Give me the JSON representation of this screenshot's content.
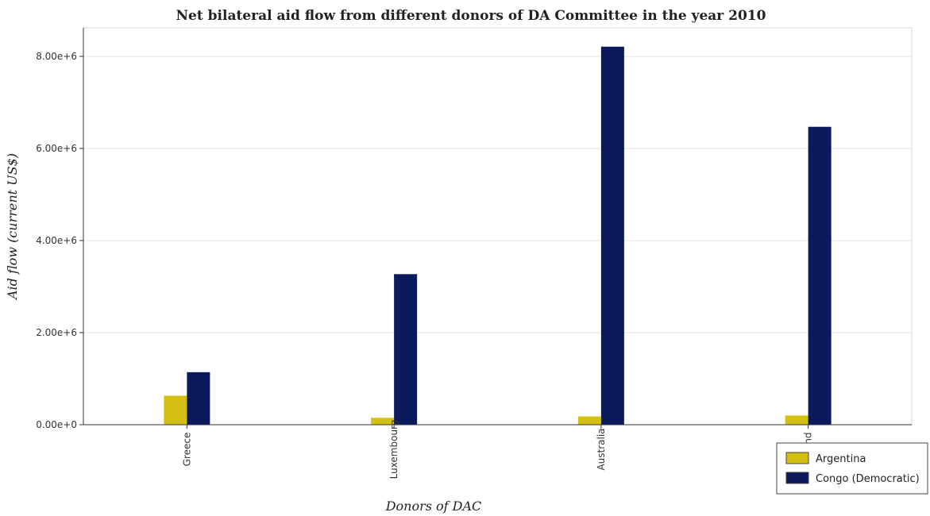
{
  "chart_data": {
    "type": "bar",
    "title": "Net bilateral aid flow from different donors of DA Committee in the year 2010",
    "xlabel": "Donors of DAC",
    "ylabel": "Aid flow (current US$)",
    "categories": [
      "Greece",
      "Luxembourg",
      "Australia",
      "Finland"
    ],
    "series": [
      {
        "name": "Argentina",
        "color": "#d4c013",
        "values": [
          630000,
          150000,
          180000,
          200000
        ]
      },
      {
        "name": "Congo (Democratic)",
        "color": "#0a1a5c",
        "values": [
          1140000,
          3270000,
          8210000,
          6470000
        ]
      }
    ],
    "ylim": [
      0,
      8620500
    ],
    "yticks": [
      0,
      2000000,
      4000000,
      6000000,
      8000000
    ],
    "ytick_labels": [
      "0.00e+0",
      "2.00e+6",
      "4.00e+6",
      "6.00e+6",
      "8.00e+6"
    ],
    "grid": true,
    "legend_position": "bottom-right"
  }
}
